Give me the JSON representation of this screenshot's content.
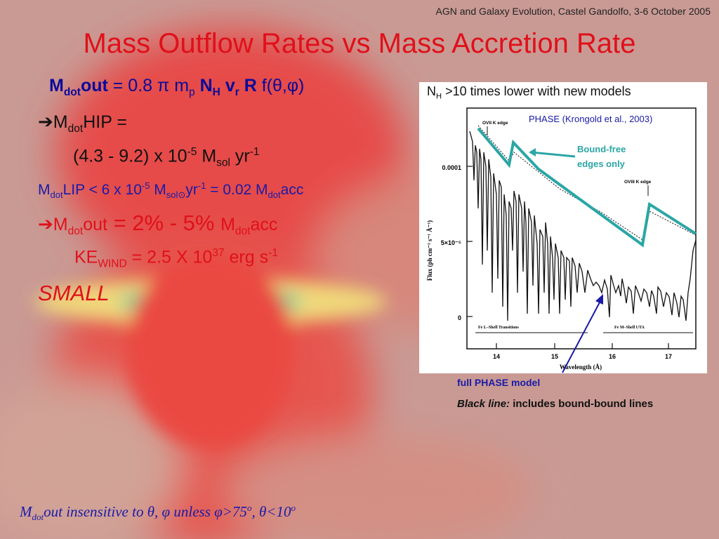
{
  "header": {
    "conference": "AGN and Galaxy Evolution, Castel Gandolfo, 3-6 October 2005",
    "title": "Mass Outflow Rates vs Mass Accretion Rate"
  },
  "formula": {
    "M": "M",
    "dot": "dot",
    "out": "out",
    "eq": " = 0.8 ",
    "pi": "π",
    "mp_m": " m",
    "mp_sub": "p",
    "NH_N": " N",
    "NH_sub": "H",
    "vr_v": " v",
    "vr_sub": "r",
    "R": " R",
    "f": " f(θ,φ)"
  },
  "bullets": {
    "arrow": "➔",
    "hip_M": "M",
    "hip_dot": "dot",
    "hip_rest": "HIP =",
    "hip_val_pre": "(4.3 - 9.2) x 10",
    "hip_exp": "-5",
    "hip_M2": " M",
    "hip_sol": "sol",
    "hip_yr": " yr",
    "hip_yrexp": "-1",
    "lip_M": "M",
    "lip_dot": "dot",
    "lip_pre": "LIP < 6 x 10",
    "lip_exp": "-5",
    "lip_M2": " M",
    "lip_sol": "sol⊙",
    "lip_yr": "yr",
    "lip_yrexp": "-1",
    "lip_eq": " = 0.02 M",
    "lip_dot2": "dot",
    "lip_acc": "acc",
    "out_M": "M",
    "out_dot": "dot",
    "out_rest": "out",
    "out_pct": " = 2% - 5% ",
    "out_M2": "M",
    "out_dot2": "dot",
    "out_acc": "acc",
    "ke_KE": "KE",
    "ke_sub": "WIND",
    "ke_eq": " = 2.5 X 10",
    "ke_exp": "37",
    "ke_unit": " erg s",
    "ke_unitexp": "-1",
    "small": "SMALL"
  },
  "footer": {
    "M": "M",
    "dot": "dot",
    "text": "out insensitive to θ, φ unless φ>75",
    "o1": "o",
    "mid": ", θ<10",
    "o2": "o"
  },
  "figure": {
    "nh_N": "N",
    "nh_sub": "H",
    "nh_text": " >10 times lower with new models",
    "phase_label": "PHASE (Krongold et al., 2003)",
    "bound_free_1": "Bound-free",
    "bound_free_2": "edges only",
    "ovii_label": "OVII K edge",
    "oviii_label": "OVIII K edge",
    "fe_l_label": "Fe L–Shell Transitions",
    "fe_m_label": "Fe M–Shell UTA",
    "ylabel": "Flux (ph cm⁻² s⁻¹ Å⁻¹)",
    "xlabel": "Wavelength (Å)",
    "y_ticks": [
      "0.0001",
      "5×10⁻⁵",
      "0"
    ],
    "x_ticks": [
      "14",
      "15",
      "16",
      "17"
    ],
    "caption_1": "full PHASE model",
    "caption_2_italic": "Black line:",
    "caption_2_rest": " includes bound-bound lines",
    "accent_teal": "#2aa6a6",
    "arrow_color": "#1a1aa8"
  }
}
